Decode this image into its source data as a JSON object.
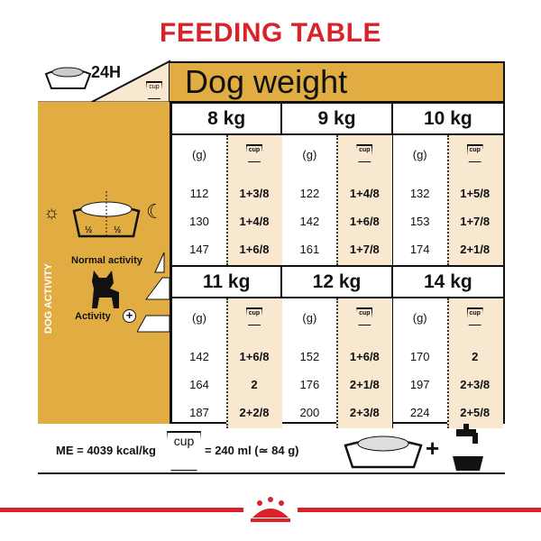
{
  "title": "FEEDING TABLE",
  "header": {
    "period": "24H",
    "dog_weight": "Dog weight",
    "cup_label": "cup"
  },
  "left_panel": {
    "half_1": "½",
    "half_2": "½",
    "dog_activity": "DOG ACTIVITY",
    "normal_activity": "Normal activity",
    "activity": "Activity",
    "icons": [
      "sun-icon",
      "food-bowl-icon",
      "moon-icon",
      "french-bulldog-icon",
      "plus-icon"
    ]
  },
  "units": {
    "grams": "(g)",
    "cup": "cup"
  },
  "weights": [
    {
      "label": "8 kg",
      "rows": [
        [
          "112",
          "1+3/8"
        ],
        [
          "130",
          "1+4/8"
        ],
        [
          "147",
          "1+6/8"
        ]
      ]
    },
    {
      "label": "9 kg",
      "rows": [
        [
          "122",
          "1+4/8"
        ],
        [
          "142",
          "1+6/8"
        ],
        [
          "161",
          "1+7/8"
        ]
      ]
    },
    {
      "label": "10 kg",
      "rows": [
        [
          "132",
          "1+5/8"
        ],
        [
          "153",
          "1+7/8"
        ],
        [
          "174",
          "2+1/8"
        ]
      ]
    },
    {
      "label": "11 kg",
      "rows": [
        [
          "142",
          "1+6/8"
        ],
        [
          "164",
          "2"
        ],
        [
          "187",
          "2+2/8"
        ]
      ]
    },
    {
      "label": "12 kg",
      "rows": [
        [
          "152",
          "1+6/8"
        ],
        [
          "176",
          "2+1/8"
        ],
        [
          "200",
          "2+3/8"
        ]
      ]
    },
    {
      "label": "14 kg",
      "rows": [
        [
          "170",
          "2"
        ],
        [
          "197",
          "2+3/8"
        ],
        [
          "224",
          "2+5/8"
        ]
      ]
    }
  ],
  "footer": {
    "me": "ME = 4039 kcal/kg",
    "cup_equiv": "= 240 ml (≃ 84 g)",
    "plus": "+"
  },
  "colors": {
    "title_red": "#d8232a",
    "gold": "#e1ad42",
    "beige": "#f7e8cf"
  }
}
